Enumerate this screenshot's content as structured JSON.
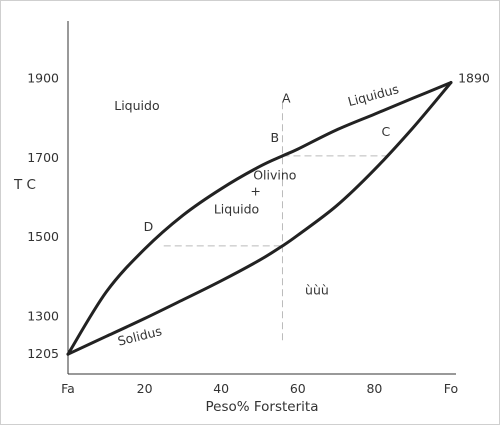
{
  "chart_data": {
    "type": "line",
    "xlabel": "Peso% Forsterita",
    "ylabel": "T C",
    "x_tick_labels": [
      "Fa",
      "20",
      "40",
      "60",
      "80",
      "Fo"
    ],
    "x_tick_values": [
      0,
      20,
      40,
      60,
      80,
      100
    ],
    "y_tick_labels": [
      "1205",
      "1300",
      "1500",
      "1700",
      "1900"
    ],
    "y_tick_values": [
      1205,
      1300,
      1500,
      1700,
      1900
    ],
    "xlim": [
      0,
      100
    ],
    "ylim": [
      1155,
      2045
    ],
    "grid": false,
    "series": [
      {
        "name": "Liquidus",
        "x": [
          0,
          10,
          20,
          30,
          40,
          50,
          56,
          60,
          70,
          80,
          90,
          100
        ],
        "y": [
          1205,
          1362,
          1470,
          1555,
          1622,
          1678,
          1705,
          1722,
          1770,
          1810,
          1850,
          1890
        ]
      },
      {
        "name": "Solidus",
        "x": [
          0,
          10,
          20,
          30,
          40,
          50,
          56,
          60,
          70,
          80,
          90,
          100
        ],
        "y": [
          1205,
          1250,
          1295,
          1342,
          1390,
          1442,
          1478,
          1505,
          1578,
          1670,
          1775,
          1890
        ]
      }
    ],
    "tie_lines": [
      {
        "x": [
          25,
          56
        ],
        "y": [
          1478,
          1478
        ]
      },
      {
        "x": [
          56,
          83
        ],
        "y": [
          1705,
          1705
        ]
      },
      {
        "x": [
          56,
          56
        ],
        "y": [
          1240,
          1850
        ]
      }
    ],
    "annotations": [
      {
        "text": "Liquido",
        "x": 18,
        "y": 1820
      },
      {
        "text": "Liquidus",
        "x": 80,
        "y": 1847
      },
      {
        "text": "Solidus",
        "x": 19,
        "y": 1240
      },
      {
        "text": "A",
        "x": 57,
        "y": 1840
      },
      {
        "text": "B",
        "x": 54,
        "y": 1740
      },
      {
        "text": "C",
        "x": 83,
        "y": 1755
      },
      {
        "text": "D",
        "x": 21,
        "y": 1515
      },
      {
        "text": "Olivino",
        "x": 54,
        "y": 1645
      },
      {
        "text": "+",
        "x": 49,
        "y": 1605
      },
      {
        "text": "Liquido",
        "x": 44,
        "y": 1560
      },
      {
        "text": "ùùù",
        "x": 65,
        "y": 1355
      },
      {
        "text": "1890",
        "x": 106,
        "y": 1890
      }
    ]
  }
}
